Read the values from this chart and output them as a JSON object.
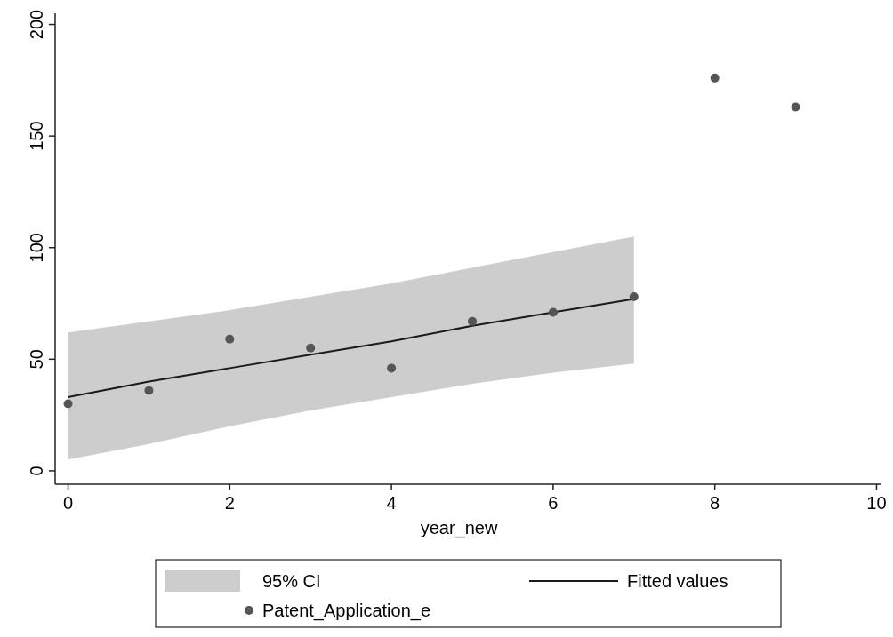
{
  "chart_data": {
    "type": "scatter",
    "xlabel": "year_new",
    "xlim": [
      -0.16,
      10.05
    ],
    "ylim": [
      -6,
      205
    ],
    "xticks": [
      0,
      2,
      4,
      6,
      8,
      10
    ],
    "yticks": [
      0,
      50,
      100,
      150,
      200
    ],
    "grid": false,
    "legend": "bottom",
    "annotations": [
      "95% CI"
    ],
    "series": [
      {
        "name": "Fitted values",
        "type": "line",
        "color": "#1a1a1a",
        "x": [
          0,
          1,
          2,
          3,
          4,
          5,
          6,
          7
        ],
        "values": [
          33,
          40,
          46,
          52,
          58,
          65,
          71,
          77
        ],
        "lower": [
          5,
          12,
          20,
          27,
          33,
          39,
          44,
          48
        ],
        "upper": [
          62,
          67,
          72,
          78,
          84,
          91,
          98,
          105
        ]
      },
      {
        "name": "Patent_Application_e",
        "color": "#555555",
        "marker": "circle",
        "x": [
          0,
          1,
          2,
          3,
          4,
          5,
          6,
          7,
          8,
          9
        ],
        "values": [
          30,
          36,
          59,
          55,
          46,
          67,
          71,
          78,
          176,
          163
        ]
      }
    ]
  }
}
